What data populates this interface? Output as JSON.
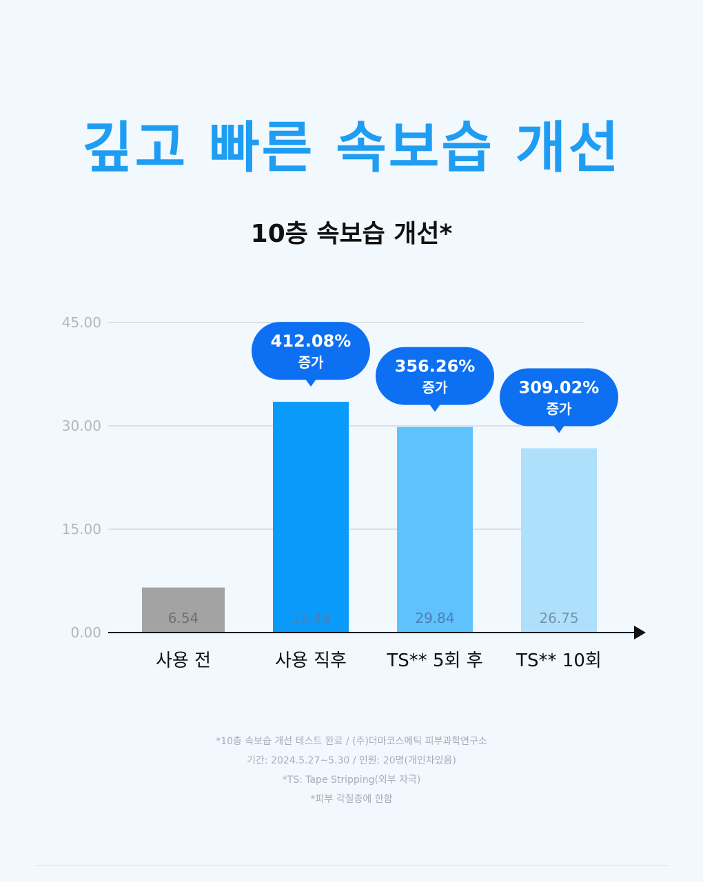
{
  "headline": "깊고 빠른 속보습 개선",
  "colors": {
    "headline": "#1e9df2",
    "callout": "#0d70f2",
    "bars": [
      "#a3a3a3",
      "#0a9bfa",
      "#60c2fd",
      "#aee0fc"
    ]
  },
  "chart_data": {
    "type": "bar",
    "title": "10층 속보습 개선*",
    "categories": [
      "사용 전",
      "사용 직후",
      "TS** 5회 후",
      "TS** 10회"
    ],
    "values": [
      6.54,
      33.49,
      29.84,
      26.75
    ],
    "value_labels": [
      "6.54",
      "33.49",
      "29.84",
      "26.75"
    ],
    "ylim": [
      0,
      45
    ],
    "yticks": [
      "0.00",
      "15.00",
      "30.00",
      "45.00"
    ],
    "ytick_values": [
      0,
      15,
      30,
      45
    ],
    "grid": true,
    "callouts": [
      null,
      {
        "pct": "412.08%",
        "text": "증가"
      },
      {
        "pct": "356.26%",
        "text": "증가"
      },
      {
        "pct": "309.02%",
        "text": "증가"
      }
    ]
  },
  "footnotes": [
    "*10층 속보습 개선 테스트 완료 / (주)더마코스메틱 피부과학연구소",
    "기간: 2024.5.27~5.30 / 인원: 20명(개인차있음)",
    "*TS: Tape Stripping(외부 자극)",
    "*피부 각질층에 한함"
  ]
}
